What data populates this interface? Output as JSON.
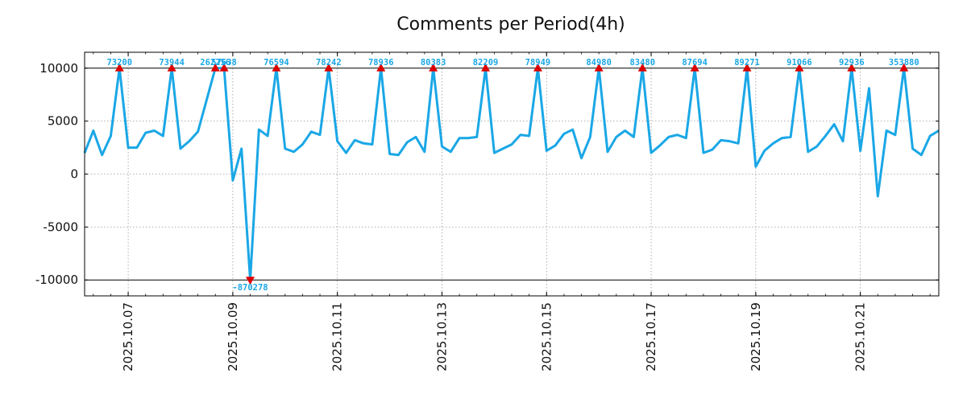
{
  "chart_data": {
    "type": "line",
    "title": "Comments per Period(4h)",
    "xlabel": "",
    "ylabel": "",
    "ylim": [
      -11500,
      11500
    ],
    "yticks": [
      10000,
      5000,
      0,
      -5000,
      -10000
    ],
    "ytick_labels": [
      "10000",
      "5000",
      "0",
      "-5000",
      "-10000"
    ],
    "reference_lines": [
      10000,
      -10000
    ],
    "clip_range": [
      -10000,
      10000
    ],
    "grid": true,
    "xticks": [
      {
        "label": "2025.10.07",
        "index": 5
      },
      {
        "label": "2025.10.09",
        "index": 17
      },
      {
        "label": "2025.10.11",
        "index": 29
      },
      {
        "label": "2025.10.13",
        "index": 41
      },
      {
        "label": "2025.10.15",
        "index": 53
      },
      {
        "label": "2025.10.17",
        "index": 65
      },
      {
        "label": "2025.10.19",
        "index": 77
      },
      {
        "label": "2025.10.21",
        "index": 89
      }
    ],
    "line_color": "#1aa7e6",
    "marker_color": "#dd0000",
    "label_color": "#1aa7e6",
    "values": [
      2000,
      4100,
      1800,
      3600,
      10000,
      2500,
      2500,
      3900,
      4100,
      3600,
      10000,
      2400,
      3100,
      4000,
      7000,
      10000,
      10000,
      -600,
      2400,
      -10000,
      4200,
      3600,
      10000,
      2400,
      2100,
      2800,
      4000,
      3700,
      10000,
      3100,
      2000,
      3200,
      2900,
      2800,
      10000,
      1900,
      1800,
      3000,
      3500,
      2100,
      10000,
      2600,
      2100,
      3400,
      3400,
      3500,
      10000,
      2000,
      2400,
      2800,
      3700,
      3600,
      10000,
      2200,
      2700,
      3800,
      4200,
      1500,
      3500,
      10000,
      2100,
      3500,
      4100,
      3500,
      10000,
      2000,
      2700,
      3500,
      3700,
      3400,
      10000,
      2000,
      2300,
      3200,
      3100,
      2900,
      10000,
      700,
      2200,
      2900,
      3400,
      3500,
      10000,
      2100,
      2600,
      3600,
      4700,
      3100,
      10000,
      2200,
      8100,
      -2100,
      4100,
      3700,
      10000,
      2400,
      1800,
      3600,
      4100
    ],
    "clipped_points": [
      {
        "index": 4,
        "actual": 73200,
        "label": "73200"
      },
      {
        "index": 10,
        "actual": 73944,
        "label": "73944"
      },
      {
        "index": 15,
        "actual": 262256,
        "label": "262256"
      },
      {
        "index": 16,
        "actual": 57638,
        "label": "57638"
      },
      {
        "index": 19,
        "actual": -870278,
        "label": "-870278"
      },
      {
        "index": 22,
        "actual": 76594,
        "label": "76594"
      },
      {
        "index": 28,
        "actual": 78242,
        "label": "78242"
      },
      {
        "index": 34,
        "actual": 78936,
        "label": "78936"
      },
      {
        "index": 40,
        "actual": 80383,
        "label": "80383"
      },
      {
        "index": 46,
        "actual": 82209,
        "label": "82209"
      },
      {
        "index": 52,
        "actual": 78949,
        "label": "78949"
      },
      {
        "index": 59,
        "actual": 84980,
        "label": "84980"
      },
      {
        "index": 64,
        "actual": 83480,
        "label": "83480"
      },
      {
        "index": 70,
        "actual": 87694,
        "label": "87694"
      },
      {
        "index": 76,
        "actual": 89271,
        "label": "89271"
      },
      {
        "index": 82,
        "actual": 91066,
        "label": "91066"
      },
      {
        "index": 88,
        "actual": 92936,
        "label": "92936"
      },
      {
        "index": 94,
        "actual": 353880,
        "label": "353880"
      }
    ]
  }
}
